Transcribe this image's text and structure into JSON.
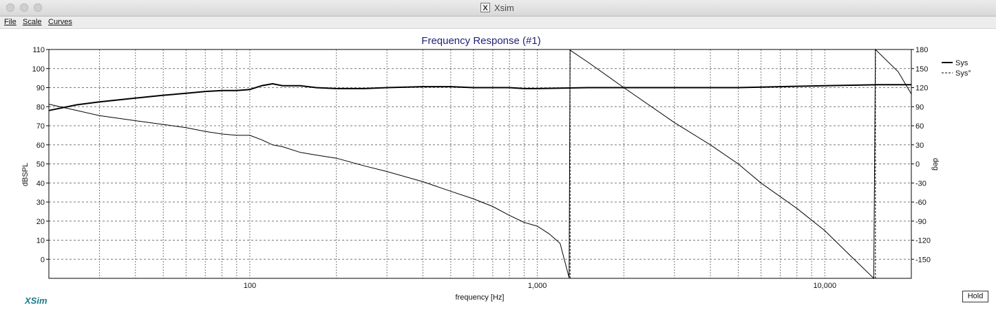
{
  "window": {
    "title": "Xsim",
    "app_icon": "X"
  },
  "menu": [
    {
      "label": "File"
    },
    {
      "label": "Scale"
    },
    {
      "label": "Curves"
    }
  ],
  "brand": "XSim",
  "hold_label": "Hold",
  "chart_data": {
    "type": "line",
    "title": "Frequency Response (#1)",
    "xlabel": "frequency [Hz]",
    "ylabel": "dBSPL",
    "y2label": "deg",
    "xscale": "log",
    "xlim": [
      20,
      20000
    ],
    "ylim": [
      -10,
      110
    ],
    "y2lim": [
      -180,
      180
    ],
    "x_ticks": [
      100,
      1000,
      10000
    ],
    "x_tick_labels": [
      "100",
      "1,000",
      "10,000"
    ],
    "y_ticks": [
      0,
      10,
      20,
      30,
      40,
      50,
      60,
      70,
      80,
      90,
      100,
      110
    ],
    "y2_ticks": [
      -150,
      -120,
      -90,
      -60,
      -30,
      0,
      30,
      60,
      90,
      120,
      150,
      180
    ],
    "grid": true,
    "legend_position": "top-right",
    "series": [
      {
        "name": "Sys",
        "axis": "left",
        "style": "solid",
        "x": [
          20,
          25,
          30,
          40,
          50,
          60,
          70,
          80,
          90,
          100,
          110,
          120,
          130,
          150,
          170,
          200,
          250,
          300,
          400,
          500,
          600,
          700,
          800,
          900,
          1000,
          1500,
          2000,
          3000,
          4000,
          5000,
          7000,
          10000,
          15000,
          20000
        ],
        "values": [
          78,
          81,
          82.5,
          84.5,
          86,
          87,
          88,
          88.5,
          88.5,
          89,
          91,
          92,
          91,
          91,
          90,
          89.5,
          89.5,
          90,
          90.5,
          90.5,
          90,
          90,
          90,
          89.5,
          89.5,
          90,
          90,
          90,
          90,
          90,
          90.5,
          91,
          91.5,
          91.5
        ]
      },
      {
        "name": "Sys°",
        "axis": "right",
        "style": "dashed",
        "x": [
          20,
          25,
          30,
          40,
          50,
          60,
          70,
          80,
          90,
          100,
          110,
          120,
          130,
          150,
          170,
          200,
          250,
          300,
          400,
          500,
          600,
          700,
          800,
          900,
          1000,
          1100,
          1200,
          1290,
          1300,
          1500,
          2000,
          3000,
          4000,
          5000,
          6000,
          8000,
          10000,
          12000,
          14800,
          15000,
          18000,
          20000
        ],
        "values": [
          94,
          84,
          76,
          68,
          62,
          57,
          51,
          47,
          45,
          45,
          38,
          30,
          27,
          18,
          14,
          9,
          -3,
          -12,
          -28,
          -43,
          -55,
          -67,
          -81,
          -92,
          -98,
          -110,
          -125,
          -179,
          179,
          160,
          120,
          65,
          30,
          0,
          -30,
          -70,
          -105,
          -140,
          -180,
          180,
          145,
          110
        ]
      }
    ]
  }
}
